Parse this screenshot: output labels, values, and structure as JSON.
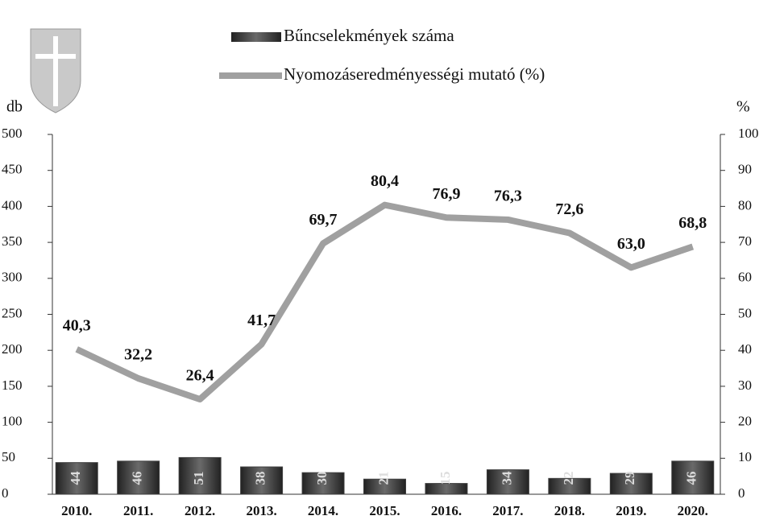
{
  "chart_data": {
    "type": "bar-line",
    "categories": [
      "2010.",
      "2011.",
      "2012.",
      "2013.",
      "2014.",
      "2015.",
      "2016.",
      "2017.",
      "2018.",
      "2019.",
      "2020."
    ],
    "series": [
      {
        "name": "Bűncselekmények száma",
        "type": "bar",
        "color": "#3f3f3f",
        "values": [
          44,
          46,
          51,
          38,
          30,
          21,
          15,
          34,
          22,
          29,
          46
        ]
      },
      {
        "name": "Nyomozáseredményességi mutató (%)",
        "type": "line",
        "axis": "y2",
        "color": "#a0a0a0",
        "values": [
          40.3,
          32.2,
          26.4,
          41.7,
          69.7,
          80.4,
          76.9,
          76.3,
          72.6,
          63.0,
          68.8
        ],
        "value_labels": [
          "40,3",
          "32,2",
          "26,4",
          "41,7",
          "69,7",
          "80,4",
          "76,9",
          "76,3",
          "72,6",
          "63,0",
          "68,8"
        ]
      }
    ],
    "y_label": "db",
    "y2_label": "%",
    "ylim": [
      0,
      500
    ],
    "yticks": [
      0,
      50,
      100,
      150,
      200,
      250,
      300,
      350,
      400,
      450,
      500
    ],
    "y2lim": [
      0,
      100
    ],
    "y2ticks": [
      0,
      10,
      20,
      30,
      40,
      50,
      60,
      70,
      80,
      90,
      100
    ]
  }
}
